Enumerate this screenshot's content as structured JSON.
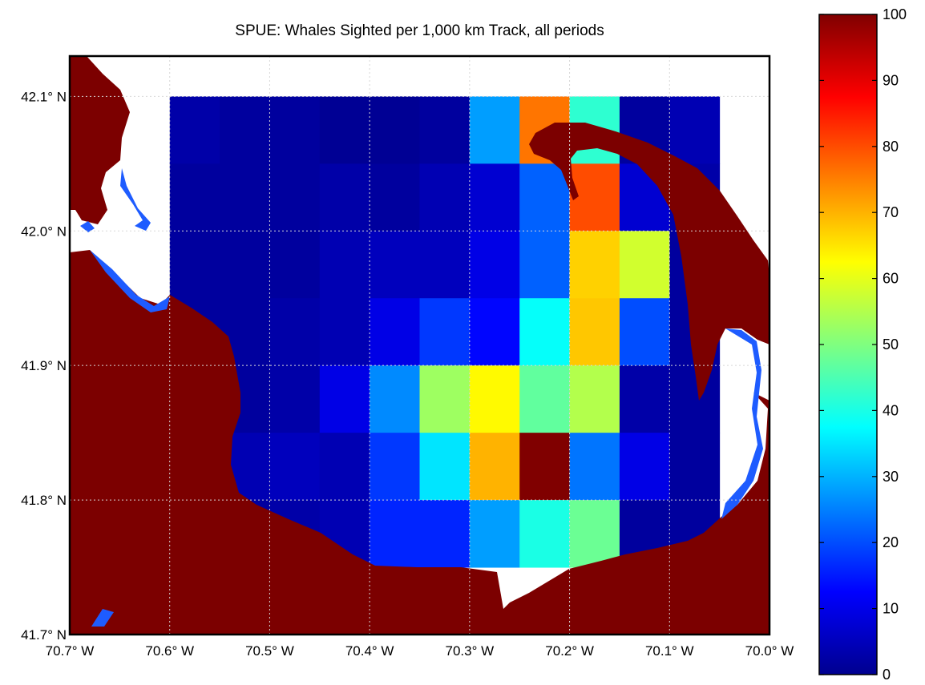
{
  "chart_data": {
    "type": "heatmap",
    "title": "SPUE: Whales Sighted per 1,000 km Track, all periods",
    "x_tick_labels": [
      "70.7° W",
      "70.6° W",
      "70.5° W",
      "70.4° W",
      "70.3° W",
      "70.2° W",
      "70.1° W",
      "70.0° W"
    ],
    "x_tick_values": [
      -70.7,
      -70.6,
      -70.5,
      -70.4,
      -70.3,
      -70.2,
      -70.1,
      -70.0
    ],
    "y_tick_labels": [
      "42.1° N",
      "42.0° N",
      "41.9° N",
      "41.8° N",
      "41.7° N"
    ],
    "y_tick_values": [
      42.1,
      42.0,
      41.9,
      41.8,
      41.7
    ],
    "xlim": [
      -70.7,
      -70.0
    ],
    "ylim": [
      41.7,
      42.13
    ],
    "grid": true,
    "cell_size_deg": 0.05,
    "x_cell_centers": [
      -70.575,
      -70.525,
      -70.475,
      -70.425,
      -70.375,
      -70.325,
      -70.275,
      -70.225,
      -70.175,
      -70.125,
      -70.075
    ],
    "y_cell_centers": [
      42.075,
      42.025,
      41.975,
      41.925,
      41.875,
      41.825,
      41.775
    ],
    "values": [
      [
        4,
        3,
        3,
        2,
        2,
        3,
        28,
        76,
        42,
        3,
        5
      ],
      [
        3,
        3,
        3,
        4,
        3,
        5,
        8,
        22,
        80,
        8,
        4
      ],
      [
        3,
        3,
        3,
        5,
        6,
        6,
        10,
        22,
        67,
        58,
        3
      ],
      [
        3,
        3,
        4,
        5,
        10,
        18,
        13,
        38,
        68,
        20,
        3
      ],
      [
        3,
        3,
        4,
        10,
        26,
        53,
        63,
        47,
        55,
        4,
        3
      ],
      [
        3,
        5,
        6,
        5,
        18,
        35,
        70,
        100,
        24,
        10,
        3
      ],
      [
        3,
        3,
        4,
        5,
        16,
        16,
        28,
        40,
        48,
        3,
        3
      ]
    ],
    "colorbar": {
      "ticks": [
        0,
        10,
        20,
        30,
        40,
        50,
        60,
        70,
        80,
        90,
        100
      ],
      "tick_labels": [
        "0",
        "10",
        "20",
        "30",
        "40",
        "50",
        "60",
        "70",
        "80",
        "90",
        "100"
      ],
      "range": [
        0,
        100
      ],
      "colormap": "jet"
    },
    "land_color": "#7c0000",
    "water_color": "#1e5cff"
  }
}
